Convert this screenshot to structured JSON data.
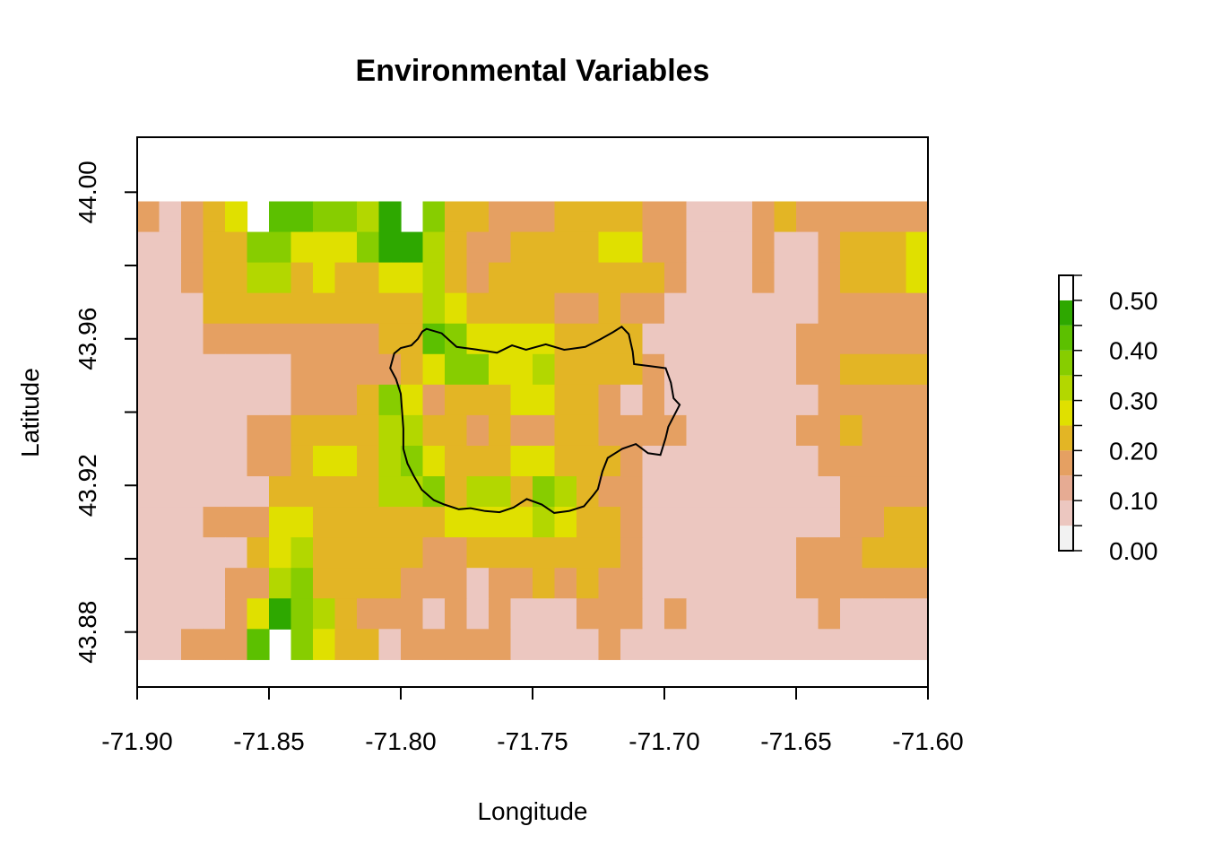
{
  "chart_data": {
    "type": "heatmap",
    "title": "Environmental Variables",
    "xlabel": "Longitude",
    "ylabel": "Latitude",
    "xlim": [
      -71.9,
      -71.6
    ],
    "ylim": [
      43.865,
      44.015
    ],
    "x_ticks": [
      "-71.90",
      "-71.85",
      "-71.80",
      "-71.75",
      "-71.70",
      "-71.65",
      "-71.60"
    ],
    "y_ticks": [
      "43.88",
      "43.92",
      "43.96",
      "44.00"
    ],
    "grid": false,
    "raster_extent": {
      "xmin": -71.9,
      "xmax": -71.6,
      "ymin": 43.8725,
      "ymax": 43.9975
    },
    "value_range": [
      0.0,
      0.55
    ],
    "legend": {
      "placement": "right",
      "tick_labels": [
        "0.00",
        "0.10",
        "0.20",
        "0.30",
        "0.40",
        "0.50"
      ],
      "tick_values": [
        0.0,
        0.1,
        0.2,
        0.3,
        0.4,
        0.5
      ],
      "breaks": [
        0.0,
        0.05,
        0.1,
        0.15,
        0.2,
        0.25,
        0.3,
        0.35,
        0.4,
        0.45,
        0.5,
        0.55
      ],
      "colors": [
        "#f2f2f2",
        "#ecc7c0",
        "#e6ab93",
        "#e5a062",
        "#e3b525",
        "#e0e000",
        "#b3d700",
        "#87cd00",
        "#5cc000",
        "#2ea800",
        "#ffffff"
      ]
    },
    "values": [
      [
        0.15,
        0.05,
        0.15,
        0.2,
        0.25,
        null,
        0.4,
        0.4,
        0.35,
        0.35,
        0.3,
        0.45,
        null,
        0.35,
        0.2,
        0.2,
        0.15,
        0.15,
        0.15,
        0.2,
        0.2,
        0.2,
        0.2,
        0.15,
        0.15,
        0.05,
        0.05,
        0.05,
        0.15,
        0.2,
        0.15,
        0.15,
        0.15,
        0.15,
        0.15,
        0.15
      ],
      [
        0.05,
        0.05,
        0.15,
        0.2,
        0.2,
        0.35,
        0.35,
        0.25,
        0.25,
        0.25,
        0.35,
        0.45,
        0.45,
        0.3,
        0.2,
        0.15,
        0.15,
        0.2,
        0.2,
        0.2,
        0.2,
        0.25,
        0.25,
        0.15,
        0.15,
        0.05,
        0.05,
        0.05,
        0.15,
        0.05,
        0.05,
        0.15,
        0.2,
        0.2,
        0.2,
        0.25
      ],
      [
        0.05,
        0.05,
        0.15,
        0.2,
        0.2,
        0.3,
        0.3,
        0.2,
        0.25,
        0.2,
        0.2,
        0.25,
        0.25,
        0.3,
        0.2,
        0.15,
        0.2,
        0.2,
        0.2,
        0.2,
        0.2,
        0.2,
        0.2,
        0.2,
        0.15,
        0.05,
        0.05,
        0.05,
        0.15,
        0.05,
        0.05,
        0.15,
        0.2,
        0.2,
        0.2,
        0.25
      ],
      [
        0.05,
        0.05,
        0.05,
        0.2,
        0.2,
        0.2,
        0.2,
        0.2,
        0.2,
        0.2,
        0.2,
        0.2,
        0.2,
        0.3,
        0.25,
        0.2,
        0.2,
        0.2,
        0.2,
        0.15,
        0.15,
        0.2,
        0.15,
        0.15,
        0.05,
        0.05,
        0.05,
        0.05,
        0.05,
        0.05,
        0.05,
        0.15,
        0.15,
        0.15,
        0.15,
        0.15
      ],
      [
        0.05,
        0.05,
        0.05,
        0.15,
        0.15,
        0.15,
        0.15,
        0.15,
        0.15,
        0.15,
        0.15,
        0.2,
        0.2,
        0.4,
        0.35,
        0.25,
        0.25,
        0.25,
        0.25,
        0.2,
        0.2,
        0.2,
        0.2,
        0.05,
        0.05,
        0.05,
        0.05,
        0.05,
        0.05,
        0.05,
        0.15,
        0.15,
        0.15,
        0.15,
        0.15,
        0.15
      ],
      [
        0.05,
        0.05,
        0.05,
        0.05,
        0.05,
        0.05,
        0.05,
        0.15,
        0.15,
        0.15,
        0.15,
        0.15,
        0.2,
        0.25,
        0.35,
        0.35,
        0.25,
        0.25,
        0.3,
        0.2,
        0.2,
        0.2,
        0.2,
        0.15,
        0.05,
        0.05,
        0.05,
        0.05,
        0.05,
        0.05,
        0.15,
        0.15,
        0.2,
        0.2,
        0.2,
        0.2
      ],
      [
        0.05,
        0.05,
        0.05,
        0.05,
        0.05,
        0.05,
        0.05,
        0.15,
        0.15,
        0.15,
        0.2,
        0.35,
        0.25,
        0.15,
        0.2,
        0.2,
        0.2,
        0.25,
        0.25,
        0.2,
        0.2,
        0.15,
        0.05,
        0.15,
        0.05,
        0.05,
        0.05,
        0.05,
        0.05,
        0.05,
        0.05,
        0.15,
        0.15,
        0.15,
        0.15,
        0.15
      ],
      [
        0.05,
        0.05,
        0.05,
        0.05,
        0.05,
        0.15,
        0.15,
        0.2,
        0.2,
        0.2,
        0.2,
        0.3,
        0.3,
        0.2,
        0.2,
        0.15,
        0.2,
        0.15,
        0.15,
        0.2,
        0.2,
        0.15,
        0.15,
        0.15,
        0.15,
        0.05,
        0.05,
        0.05,
        0.05,
        0.05,
        0.15,
        0.15,
        0.2,
        0.15,
        0.15,
        0.15
      ],
      [
        0.05,
        0.05,
        0.05,
        0.05,
        0.05,
        0.15,
        0.15,
        0.2,
        0.25,
        0.25,
        0.2,
        0.3,
        0.35,
        0.25,
        0.2,
        0.2,
        0.2,
        0.25,
        0.25,
        0.2,
        0.2,
        0.2,
        0.15,
        0.05,
        0.05,
        0.05,
        0.05,
        0.05,
        0.05,
        0.05,
        0.05,
        0.15,
        0.15,
        0.15,
        0.15,
        0.15
      ],
      [
        0.05,
        0.05,
        0.05,
        0.05,
        0.05,
        0.05,
        0.2,
        0.2,
        0.2,
        0.2,
        0.2,
        0.3,
        0.3,
        0.35,
        0.2,
        0.3,
        0.3,
        0.2,
        0.35,
        0.3,
        0.2,
        0.15,
        0.15,
        0.05,
        0.05,
        0.05,
        0.05,
        0.05,
        0.05,
        0.05,
        0.05,
        0.05,
        0.15,
        0.15,
        0.15,
        0.15
      ],
      [
        0.05,
        0.05,
        0.05,
        0.15,
        0.15,
        0.15,
        0.25,
        0.25,
        0.2,
        0.2,
        0.2,
        0.2,
        0.2,
        0.2,
        0.25,
        0.25,
        0.25,
        0.25,
        0.3,
        0.25,
        0.2,
        0.2,
        0.15,
        0.05,
        0.05,
        0.05,
        0.05,
        0.05,
        0.05,
        0.05,
        0.05,
        0.05,
        0.15,
        0.15,
        0.2,
        0.2
      ],
      [
        0.05,
        0.05,
        0.05,
        0.05,
        0.05,
        0.2,
        0.25,
        0.3,
        0.2,
        0.2,
        0.2,
        0.2,
        0.2,
        0.15,
        0.15,
        0.2,
        0.2,
        0.2,
        0.2,
        0.2,
        0.2,
        0.2,
        0.15,
        0.05,
        0.05,
        0.05,
        0.05,
        0.05,
        0.05,
        0.05,
        0.15,
        0.15,
        0.15,
        0.2,
        0.2,
        0.2
      ],
      [
        0.05,
        0.05,
        0.05,
        0.05,
        0.15,
        0.15,
        0.3,
        0.35,
        0.2,
        0.2,
        0.2,
        0.2,
        0.15,
        0.15,
        0.15,
        0.05,
        0.15,
        0.15,
        0.2,
        0.15,
        0.2,
        0.15,
        0.15,
        0.05,
        0.05,
        0.05,
        0.05,
        0.05,
        0.05,
        0.05,
        0.15,
        0.15,
        0.15,
        0.15,
        0.15,
        0.15
      ],
      [
        0.05,
        0.05,
        0.05,
        0.05,
        0.15,
        0.25,
        0.45,
        0.35,
        0.3,
        0.2,
        0.15,
        0.15,
        0.15,
        0.05,
        0.15,
        0.05,
        0.15,
        0.05,
        0.05,
        0.05,
        0.15,
        0.15,
        0.15,
        0.05,
        0.15,
        0.05,
        0.05,
        0.05,
        0.05,
        0.05,
        0.05,
        0.15,
        0.05,
        0.05,
        0.05,
        0.05
      ],
      [
        0.05,
        0.05,
        0.15,
        0.15,
        0.15,
        0.4,
        null,
        0.35,
        0.25,
        0.2,
        0.2,
        0.05,
        0.15,
        0.15,
        0.15,
        0.15,
        0.15,
        0.05,
        0.05,
        0.05,
        0.05,
        0.15,
        0.05,
        0.05,
        0.05,
        0.05,
        0.05,
        0.05,
        0.05,
        0.05,
        0.05,
        0.05,
        0.05,
        0.05,
        0.05,
        0.05
      ]
    ],
    "boundary_outline": [
      [
        -71.7902,
        43.9627
      ],
      [
        -71.7845,
        43.9615
      ],
      [
        -71.7788,
        43.9578
      ],
      [
        -71.7715,
        43.9571
      ],
      [
        -71.7635,
        43.9562
      ],
      [
        -71.7578,
        43.9582
      ],
      [
        -71.7525,
        43.957
      ],
      [
        -71.745,
        43.9585
      ],
      [
        -71.738,
        43.957
      ],
      [
        -71.73,
        43.9578
      ],
      [
        -71.7245,
        43.9598
      ],
      [
        -71.7195,
        43.9618
      ],
      [
        -71.7162,
        43.9633
      ],
      [
        -71.7135,
        43.9613
      ],
      [
        -71.712,
        43.9565
      ],
      [
        -71.7115,
        43.9531
      ],
      [
        -71.705,
        43.9525
      ],
      [
        -71.6995,
        43.952
      ],
      [
        -71.6975,
        43.948
      ],
      [
        -71.6965,
        43.9438
      ],
      [
        -71.6942,
        43.942
      ],
      [
        -71.6985,
        43.936
      ],
      [
        -71.6995,
        43.933
      ],
      [
        -71.7015,
        43.9283
      ],
      [
        -71.7062,
        43.9288
      ],
      [
        -71.7108,
        43.9313
      ],
      [
        -71.716,
        43.93
      ],
      [
        -71.7215,
        43.9275
      ],
      [
        -71.7235,
        43.9238
      ],
      [
        -71.7252,
        43.919
      ],
      [
        -71.7268,
        43.9175
      ],
      [
        -71.7305,
        43.9143
      ],
      [
        -71.7362,
        43.913
      ],
      [
        -71.7418,
        43.9125
      ],
      [
        -71.7465,
        43.9148
      ],
      [
        -71.7522,
        43.9163
      ],
      [
        -71.7572,
        43.914
      ],
      [
        -71.7625,
        43.9127
      ],
      [
        -71.768,
        43.913
      ],
      [
        -71.7735,
        43.9138
      ],
      [
        -71.778,
        43.9135
      ],
      [
        -71.7835,
        43.9148
      ],
      [
        -71.7875,
        43.916
      ],
      [
        -71.792,
        43.9188
      ],
      [
        -71.795,
        43.9225
      ],
      [
        -71.7975,
        43.926
      ],
      [
        -71.799,
        43.93
      ],
      [
        -71.799,
        43.9355
      ],
      [
        -71.7995,
        43.94
      ],
      [
        -71.8,
        43.945
      ],
      [
        -71.8018,
        43.949
      ],
      [
        -71.804,
        43.952
      ],
      [
        -71.8025,
        43.956
      ],
      [
        -71.8,
        43.9575
      ],
      [
        -71.796,
        43.9582
      ],
      [
        -71.7935,
        43.96
      ],
      [
        -71.7918,
        43.962
      ],
      [
        -71.7902,
        43.9627
      ]
    ]
  }
}
